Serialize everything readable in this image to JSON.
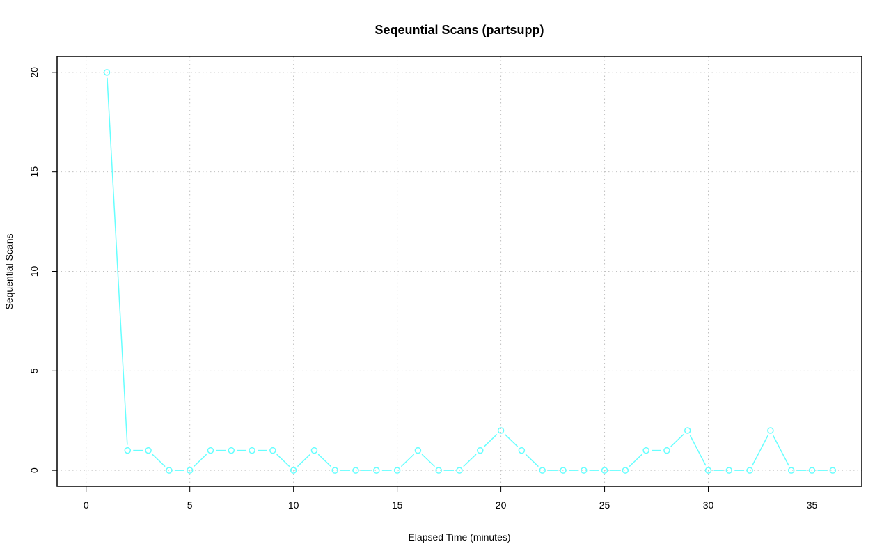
{
  "chart_data": {
    "type": "line",
    "title": "Seqeuntial Scans (partsupp)",
    "xlabel": "Elapsed Time (minutes)",
    "ylabel": "Sequential Scans",
    "xlim": [
      -1.4,
      37.4
    ],
    "ylim": [
      -0.8,
      20.8
    ],
    "x_ticks": [
      0,
      5,
      10,
      15,
      20,
      25,
      30,
      35
    ],
    "y_ticks": [
      0,
      5,
      10,
      15,
      20
    ],
    "grid": true,
    "series": [
      {
        "color": "#66ffff",
        "marker": "open-circle",
        "x": [
          1,
          2,
          3,
          4,
          5,
          6,
          7,
          8,
          9,
          10,
          11,
          12,
          13,
          14,
          15,
          16,
          17,
          18,
          19,
          20,
          21,
          22,
          23,
          24,
          25,
          26,
          27,
          28,
          29,
          30,
          31,
          32,
          33,
          34,
          35,
          36
        ],
        "y": [
          20,
          1,
          1,
          0,
          0,
          1,
          1,
          1,
          1,
          0,
          1,
          0,
          0,
          0,
          0,
          1,
          0,
          0,
          1,
          2,
          1,
          0,
          0,
          0,
          0,
          0,
          1,
          1,
          2,
          0,
          0,
          0,
          2,
          0,
          0,
          0
        ]
      }
    ]
  }
}
